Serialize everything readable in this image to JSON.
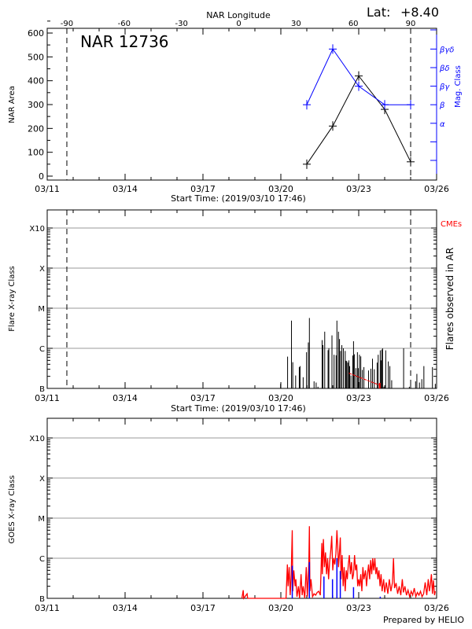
{
  "colors": {
    "area": "#000000",
    "mag_class": "#0000ff",
    "flares": "#000000",
    "cme": "#ff0000",
    "goes_primary": "#ff0000",
    "goes_secondary": "#0000ff",
    "grid": "#999999"
  },
  "header": {
    "lat_label": "Lat:",
    "lat_value": "+8.40",
    "region_title": "NAR 12736",
    "top_axis_label": "NAR Longitude"
  },
  "footer": {
    "credit": "Prepared by HELIO"
  },
  "chart_data": [
    {
      "type": "line",
      "panel": "area-and-magnetic-class",
      "title": "NAR 12736",
      "xlabel": "Start Time: (2019/03/10 17:46)",
      "x_ticks": [
        "03/11",
        "03/14",
        "03/17",
        "03/20",
        "03/23",
        "03/26"
      ],
      "x_range": [
        "2019-03-11",
        "2019-03-26"
      ],
      "top_axis": {
        "label": "NAR Longitude",
        "ticks": [
          "-90",
          "-60",
          "-30",
          "0",
          "30",
          "60",
          "90"
        ]
      },
      "limb_markers": [
        "-90",
        "90"
      ],
      "ylabel": "NAR Area",
      "ylim": [
        0,
        600
      ],
      "y_ticks": [
        "0",
        "100",
        "200",
        "300",
        "400",
        "500",
        "600"
      ],
      "y2label": "Mag. Class",
      "y2_ticks": [
        "",
        "",
        "α",
        "β",
        "βγ",
        "βδ",
        "βγδ"
      ],
      "grid": false,
      "series": [
        {
          "name": "NAR Area",
          "x": [
            "2019-03-21",
            "2019-03-22",
            "2019-03-23",
            "2019-03-24",
            "2019-03-25"
          ],
          "values": [
            50,
            210,
            420,
            280,
            60
          ]
        },
        {
          "name": "Mag. Class",
          "x": [
            "2019-03-21",
            "2019-03-22",
            "2019-03-23",
            "2019-03-24",
            "2019-03-25"
          ],
          "values": [
            "β",
            "βγδ",
            "βγ",
            "β",
            "β"
          ]
        }
      ]
    },
    {
      "type": "bar",
      "panel": "flares-observed-in-ar",
      "xlabel": "Start Time: (2019/03/10 17:46)",
      "x_ticks": [
        "03/11",
        "03/14",
        "03/17",
        "03/20",
        "03/23",
        "03/26"
      ],
      "ylabel": "Flare X-ray Class",
      "y_ticks": [
        "B",
        "C",
        "M",
        "X",
        "X10"
      ],
      "y2label": "Flares observed in AR",
      "legend": "CMEs",
      "scale": "log",
      "grid": true,
      "flares_day_of_march_2019": [
        19.99,
        20.26,
        20.41,
        20.46,
        20.57,
        20.71,
        20.74,
        20.86,
        20.99,
        21.06,
        21.1,
        21.28,
        21.36,
        21.43,
        21.59,
        21.62,
        21.69,
        21.82,
        21.85,
        21.97,
        22.05,
        22.13,
        22.16,
        22.22,
        22.26,
        22.3,
        22.35,
        22.41,
        22.48,
        22.51,
        22.54,
        22.58,
        22.62,
        22.65,
        22.7,
        22.77,
        22.8,
        22.83,
        22.89,
        22.95,
        22.98,
        23.03,
        23.08,
        23.14,
        23.2,
        23.38,
        23.47,
        23.53,
        23.6,
        23.71,
        23.75,
        23.83,
        23.86,
        23.89,
        23.92,
        23.97,
        24.04,
        24.14,
        24.2,
        24.27,
        24.73,
        24.95,
        25.19,
        25.24,
        25.34,
        25.43,
        25.51,
        25.84,
        25.95
      ],
      "flares_class": [
        "B1.3",
        "B6.2",
        "C4.9",
        "B4.5",
        "B2.1",
        "B3.4",
        "B3.6",
        "B1.9",
        "B8.0",
        "C1.4",
        "C5.7",
        "B1.5",
        "B1.4",
        "B1.1",
        "C1.6",
        "C1.2",
        "C2.6",
        "B9.0",
        "C1.0",
        "C2.1",
        "B6.9",
        "B6.7",
        "C4.9",
        "C2.6",
        "C1.7",
        "B8.6",
        "C1.2",
        "C1.0",
        "B8.6",
        "B4.9",
        "B4.8",
        "B4.4",
        "B5.0",
        "B3.6",
        "B2.1",
        "B6.6",
        "C1.5",
        "B7.1",
        "B3.2",
        "B8.0",
        "B3.2",
        "B6.9",
        "B6.3",
        "B2.9",
        "B3.4",
        "B2.8",
        "B3.1",
        "B5.5",
        "B3.0",
        "B4.4",
        "B6.9",
        "B8.9",
        "B5.0",
        "B9.3",
        "C1.0",
        "B1.1",
        "B8.9",
        "B4.7",
        "B3.6",
        "B1.6",
        "C1.0",
        "B1.1",
        "B1.5",
        "B2.3",
        "B1.4",
        "B1.7",
        "B3.6",
        "B3.4",
        "B1.3"
      ],
      "cme_track_day_of_march_2019": [
        22.62,
        23.81
      ],
      "cme_track_class": [
        "B2.4",
        "B1.2"
      ]
    },
    {
      "type": "line",
      "panel": "goes-xray-flux",
      "x_ticks": [
        "03/11",
        "03/14",
        "03/17",
        "03/20",
        "03/23",
        "03/26"
      ],
      "ylabel": "GOES X-ray Class",
      "y_ticks": [
        "B",
        "C",
        "M",
        "X",
        "X10"
      ],
      "scale": "log",
      "grid": true,
      "series": [
        {
          "flux_w_m2": [
            [
              18.5,
              5e-08
            ],
            [
              18.55,
              1.6e-07
            ],
            [
              18.57,
              5e-08
            ],
            [
              18.7,
              1.3e-07
            ],
            [
              18.72,
              5e-08
            ],
            [
              20.2,
              5e-08
            ],
            [
              20.25,
              7e-07
            ],
            [
              20.28,
              2e-07
            ],
            [
              20.32,
              6e-07
            ],
            [
              20.36,
              1.2e-07
            ],
            [
              20.4,
              4e-07
            ],
            [
              20.44,
              5e-06
            ],
            [
              20.46,
              1.5e-07
            ],
            [
              20.5,
              5e-07
            ],
            [
              20.55,
              2e-07
            ],
            [
              20.58,
              3e-07
            ],
            [
              20.62,
              1.1e-07
            ],
            [
              20.68,
              2e-07
            ],
            [
              20.72,
              1e-07
            ],
            [
              20.78,
              4e-07
            ],
            [
              20.82,
              1.2e-07
            ],
            [
              20.86,
              2e-07
            ],
            [
              20.92,
              1e-07
            ],
            [
              20.98,
              6e-07
            ],
            [
              21.02,
              1.1e-07
            ],
            [
              21.08,
              8e-07
            ],
            [
              21.1,
              6.3e-06
            ],
            [
              21.12,
              1.5e-07
            ],
            [
              21.16,
              3e-07
            ],
            [
              21.22,
              1.1e-07
            ],
            [
              21.28,
              1.3e-07
            ],
            [
              21.34,
              1.2e-07
            ],
            [
              21.4,
              1.4e-07
            ],
            [
              21.46,
              1.5e-07
            ],
            [
              21.52,
              1.2e-07
            ],
            [
              21.58,
              2.4e-06
            ],
            [
              21.6,
              4e-07
            ],
            [
              21.64,
              3e-06
            ],
            [
              21.68,
              6e-07
            ],
            [
              21.72,
              1.4e-06
            ],
            [
              21.76,
              4e-07
            ],
            [
              21.8,
              1e-06
            ],
            [
              21.84,
              3e-07
            ],
            [
              21.88,
              8e-07
            ],
            [
              21.92,
              1.5e-06
            ],
            [
              21.96,
              3.6e-06
            ],
            [
              22.0,
              5e-07
            ],
            [
              22.04,
              1e-06
            ],
            [
              22.08,
              7e-07
            ],
            [
              22.12,
              1.3e-06
            ],
            [
              22.16,
              5e-06
            ],
            [
              22.19,
              2e-06
            ],
            [
              22.22,
              6e-07
            ],
            [
              22.25,
              1.2e-06
            ],
            [
              22.29,
              3.3e-06
            ],
            [
              22.32,
              3e-07
            ],
            [
              22.36,
              1.2e-06
            ],
            [
              22.4,
              2e-07
            ],
            [
              22.44,
              6e-07
            ],
            [
              22.48,
              1.5e-07
            ],
            [
              22.52,
              5e-07
            ],
            [
              22.56,
              3e-07
            ],
            [
              22.6,
              7e-07
            ],
            [
              22.64,
              1.2e-06
            ],
            [
              22.68,
              4e-07
            ],
            [
              22.72,
              8e-07
            ],
            [
              22.76,
              3e-07
            ],
            [
              22.8,
              4e-07
            ],
            [
              22.84,
              1.2e-06
            ],
            [
              22.88,
              5e-07
            ],
            [
              22.92,
              7e-07
            ],
            [
              22.96,
              2e-07
            ],
            [
              23.0,
              3e-07
            ],
            [
              23.04,
              2e-07
            ],
            [
              23.08,
              4e-07
            ],
            [
              23.12,
              1.5e-07
            ],
            [
              23.16,
              6e-07
            ],
            [
              23.2,
              3e-07
            ],
            [
              23.26,
              5e-07
            ],
            [
              23.3,
              2e-07
            ],
            [
              23.34,
              4e-07
            ],
            [
              23.38,
              7e-07
            ],
            [
              23.42,
              3e-07
            ],
            [
              23.46,
              9e-07
            ],
            [
              23.5,
              4e-07
            ],
            [
              23.54,
              1e-06
            ],
            [
              23.58,
              5e-07
            ],
            [
              23.62,
              1e-06
            ],
            [
              23.66,
              4e-07
            ],
            [
              23.7,
              6e-07
            ],
            [
              23.74,
              3e-07
            ],
            [
              23.78,
              5e-07
            ],
            [
              23.82,
              2e-07
            ],
            [
              23.86,
              4e-07
            ],
            [
              23.9,
              1.5e-07
            ],
            [
              23.96,
              3e-07
            ],
            [
              24.0,
              1.4e-07
            ],
            [
              24.06,
              2.5e-07
            ],
            [
              24.12,
              1.3e-07
            ],
            [
              24.18,
              3e-07
            ],
            [
              24.24,
              1.5e-07
            ],
            [
              24.3,
              2.5e-07
            ],
            [
              24.34,
              1e-06
            ],
            [
              24.38,
              1.8e-07
            ],
            [
              24.44,
              2.4e-07
            ],
            [
              24.5,
              1.3e-07
            ],
            [
              24.56,
              2e-07
            ],
            [
              24.62,
              1.2e-07
            ],
            [
              24.68,
              3e-07
            ],
            [
              24.72,
              1.4e-07
            ],
            [
              24.78,
              2e-07
            ],
            [
              24.84,
              1.2e-07
            ],
            [
              24.9,
              1.6e-07
            ],
            [
              24.96,
              1.1e-07
            ],
            [
              25.02,
              1.5e-07
            ],
            [
              25.08,
              1.2e-07
            ],
            [
              25.14,
              1.8e-07
            ],
            [
              25.2,
              1.1e-07
            ],
            [
              25.26,
              1.4e-07
            ],
            [
              25.32,
              1.2e-07
            ],
            [
              25.38,
              1.5e-07
            ],
            [
              25.44,
              1.1e-07
            ],
            [
              25.5,
              1.3e-07
            ],
            [
              25.56,
              2.5e-07
            ],
            [
              25.62,
              1.2e-07
            ],
            [
              25.68,
              3e-07
            ],
            [
              25.72,
              1.5e-07
            ],
            [
              25.76,
              2.2e-07
            ],
            [
              25.8,
              4e-07
            ],
            [
              25.84,
              1.3e-07
            ],
            [
              25.88,
              2.8e-07
            ],
            [
              25.92,
              1.2e-07
            ],
            [
              25.95,
              1.5e-07
            ]
          ]
        },
        {
          "flux_w_m2": [
            [
              20.44,
              6.5e-07
            ],
            [
              21.1,
              8e-07
            ],
            [
              21.66,
              3.5e-07
            ],
            [
              21.99,
              3e-07
            ],
            [
              22.16,
              1e-06
            ],
            [
              22.29,
              4.8e-07
            ],
            [
              22.8,
              1.9e-07
            ],
            [
              23.83,
              1.1e-07
            ]
          ]
        }
      ]
    }
  ]
}
